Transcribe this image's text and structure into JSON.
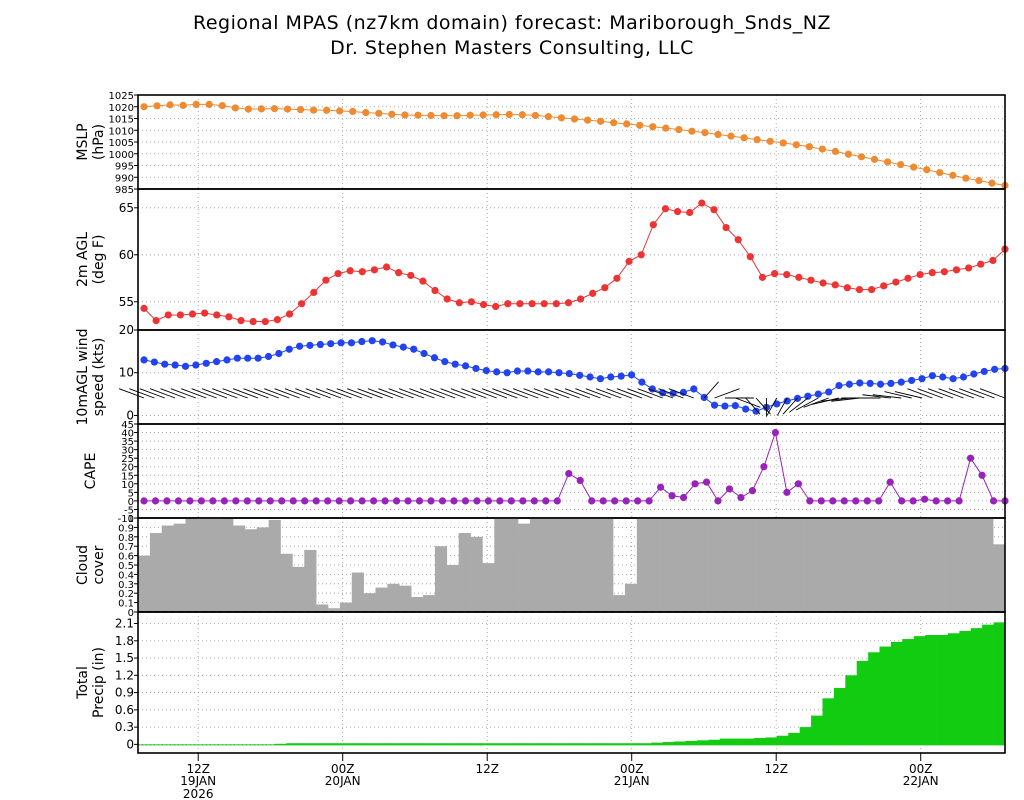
{
  "header": {
    "title": "Regional MPAS (nz7km domain) forecast: Mariborough_Snds_NZ",
    "subtitle": "Dr. Stephen Masters Consulting, LLC"
  },
  "chart_data": [
    {
      "type": "line",
      "ylabel": [
        "MSLP",
        "(hPa)"
      ],
      "ylim": [
        985,
        1025
      ],
      "yticks": [
        985,
        990,
        995,
        1000,
        1005,
        1010,
        1015,
        1020,
        1025
      ],
      "color": "#f08a30",
      "grid": true,
      "values": [
        1020,
        1020.4,
        1020.8,
        1020.6,
        1021,
        1021,
        1020.5,
        1019.5,
        1019,
        1019.1,
        1019.2,
        1019,
        1018.8,
        1018.6,
        1018.5,
        1018.2,
        1018,
        1017.5,
        1017.2,
        1016.8,
        1016.5,
        1016.4,
        1016.3,
        1016.2,
        1016.2,
        1016.4,
        1016.5,
        1016.6,
        1016.7,
        1016.6,
        1016.3,
        1015.8,
        1015.3,
        1014.8,
        1014.3,
        1013.8,
        1013.2,
        1012.7,
        1012.1,
        1011.5,
        1010.9,
        1010.3,
        1009.6,
        1009,
        1008.2,
        1007.5,
        1006.8,
        1006,
        1005.3,
        1004.6,
        1003.8,
        1003,
        1002,
        1001,
        999.8,
        998.7,
        997.6,
        996.5,
        995.4,
        994.3,
        993.2,
        992,
        990.8,
        989.6,
        988.6,
        987.5,
        986.5
      ]
    },
    {
      "type": "line",
      "ylabel": [
        "2m AGL",
        "(deg F)"
      ],
      "ylim": [
        52,
        67
      ],
      "yticks": [
        55,
        60,
        65
      ],
      "color": "#ee3333",
      "grid": true,
      "values": [
        54.3,
        53.0,
        53.6,
        53.6,
        53.7,
        53.8,
        53.6,
        53.4,
        53.0,
        52.9,
        52.9,
        53.1,
        53.7,
        54.8,
        56.0,
        57.3,
        58.0,
        58.3,
        58.2,
        58.4,
        58.7,
        58.1,
        57.8,
        57.2,
        56.2,
        55.3,
        54.9,
        55.0,
        54.7,
        54.5,
        54.8,
        54.8,
        54.8,
        54.8,
        54.8,
        54.9,
        55.3,
        55.9,
        56.5,
        57.5,
        59.3,
        60.0,
        63.2,
        64.9,
        64.6,
        64.5,
        65.5,
        64.8,
        62.9,
        61.6,
        59.8,
        57.6,
        58.0,
        57.9,
        57.6,
        57.3,
        57.0,
        56.8,
        56.5,
        56.3,
        56.3,
        56.7,
        57.1,
        57.5,
        57.9,
        58.1,
        58.2,
        58.4,
        58.6,
        59.0,
        59.4,
        60.6
      ]
    },
    {
      "type": "line",
      "ylabel": [
        "10mAGL wind",
        "speed (kts)"
      ],
      "ylim": [
        -2,
        20
      ],
      "yticks": [
        0,
        10,
        20
      ],
      "color": "#2244ee",
      "grid": true,
      "wind_barbs": true,
      "values": [
        13,
        12.5,
        12,
        11.8,
        11.5,
        11.8,
        12.2,
        12.6,
        13,
        13.4,
        13.4,
        13.4,
        13.8,
        14.5,
        15.5,
        16.2,
        16.4,
        16.6,
        16.8,
        17,
        17,
        17.3,
        17.5,
        17.2,
        16.5,
        16,
        15.5,
        14.5,
        13.5,
        12.6,
        12,
        11.6,
        11,
        10.5,
        10.2,
        10,
        10.4,
        10.4,
        10.2,
        10.2,
        10,
        9.8,
        9.4,
        9,
        8.6,
        9,
        9.2,
        9.5,
        7.8,
        6.2,
        5.3,
        5.2,
        5.4,
        6.2,
        4.2,
        2.4,
        2.2,
        2.3,
        1.5,
        1,
        1.9,
        2.7,
        3.4,
        4,
        4.5,
        5,
        5.5,
        7,
        7.3,
        7.6,
        7.5,
        7.3,
        7.5,
        7.8,
        8.2,
        8.6,
        9.3,
        9,
        8.6,
        9,
        9.7,
        10.3,
        10.8,
        11
      ]
    },
    {
      "type": "line",
      "ylabel": [
        "CAPE"
      ],
      "ylim": [
        -10,
        45
      ],
      "yticks": [
        -10,
        -5,
        0,
        5,
        10,
        15,
        20,
        25,
        30,
        35,
        40,
        45
      ],
      "color": "#9922bb",
      "grid": true,
      "values": [
        0,
        0,
        0,
        0,
        0,
        0,
        0,
        0,
        0,
        0,
        0,
        0,
        0,
        0,
        0,
        0,
        0,
        0,
        0,
        0,
        0,
        0,
        0,
        0,
        0,
        0,
        0,
        0,
        0,
        0,
        0,
        0,
        0,
        0,
        0,
        0,
        0,
        16,
        12,
        0,
        0,
        0,
        0,
        0,
        0,
        8,
        3,
        2,
        10,
        11,
        0,
        7,
        2,
        6,
        20,
        40,
        5,
        10,
        0,
        0,
        0,
        0,
        0,
        0,
        0,
        11,
        0,
        0,
        1,
        0,
        0,
        0,
        25,
        15,
        0,
        0
      ]
    },
    {
      "type": "bar",
      "ylabel": [
        "Cloud",
        "cover"
      ],
      "ylim": [
        0,
        1
      ],
      "yticks": [
        0,
        0.1,
        0.2,
        0.3,
        0.4,
        0.5,
        0.6,
        0.7,
        0.8,
        0.9,
        1
      ],
      "ytick_labels": [
        "0",
        "0.1",
        "0.2",
        "0.3",
        "0.4",
        "0.5",
        "0.6",
        "0.7",
        "0.8",
        "0.9",
        "1"
      ],
      "color": "#aaaaaa",
      "grid": true,
      "values": [
        0.6,
        0.84,
        0.92,
        0.94,
        0.99,
        1,
        1,
        0.99,
        0.92,
        0.88,
        0.9,
        0.98,
        0.62,
        0.48,
        0.66,
        0.08,
        0.04,
        0.1,
        0.42,
        0.2,
        0.26,
        0.3,
        0.28,
        0.16,
        0.18,
        0.7,
        0.5,
        0.84,
        0.8,
        0.52,
        1,
        1,
        0.94,
        1,
        1,
        1,
        1,
        1,
        1,
        1,
        0.18,
        0.3,
        1,
        1,
        1,
        1,
        1,
        1,
        1,
        1,
        1,
        1,
        1,
        1,
        1,
        1,
        1,
        1,
        1,
        1,
        1,
        1,
        1,
        1,
        1,
        1,
        1,
        1,
        1,
        1,
        1,
        1,
        0.72
      ]
    },
    {
      "type": "area",
      "ylabel": [
        "Total",
        "Precip (in)"
      ],
      "ylim": [
        -0.15,
        2.3
      ],
      "yticks": [
        0,
        0.3,
        0.6,
        0.9,
        1.2,
        1.5,
        1.8,
        2.1
      ],
      "ytick_labels": [
        "0",
        "0.3",
        "0.6",
        "0.9",
        "1.2",
        "1.5",
        "1.8",
        "2.1"
      ],
      "color": "#11cc11",
      "grid": true,
      "values": [
        0,
        0,
        0,
        0,
        0,
        0,
        0,
        0,
        0,
        0,
        0,
        0,
        0.01,
        0.02,
        0.02,
        0.02,
        0.02,
        0.02,
        0.02,
        0.02,
        0.02,
        0.02,
        0.02,
        0.02,
        0.02,
        0.02,
        0.02,
        0.02,
        0.02,
        0.02,
        0.02,
        0.02,
        0.02,
        0.02,
        0.02,
        0.02,
        0.02,
        0.02,
        0.02,
        0.02,
        0.02,
        0.02,
        0.02,
        0.02,
        0.02,
        0.03,
        0.04,
        0.05,
        0.06,
        0.07,
        0.08,
        0.1,
        0.1,
        0.1,
        0.11,
        0.12,
        0.15,
        0.2,
        0.3,
        0.5,
        0.8,
        0.98,
        1.2,
        1.45,
        1.6,
        1.7,
        1.78,
        1.83,
        1.88,
        1.9,
        1.9,
        1.93,
        1.97,
        2.02,
        2.08,
        2.12
      ]
    }
  ],
  "x_axis": {
    "x_start_hour": 0,
    "x_end_hour": 72,
    "ticks": [
      {
        "hour": 0,
        "label": "12Z"
      },
      {
        "hour": 12,
        "label": "00Z"
      },
      {
        "hour": 24,
        "label": "12Z"
      },
      {
        "hour": 36,
        "label": "00Z"
      },
      {
        "hour": 48,
        "label": "12Z"
      },
      {
        "hour": 60,
        "label": "00Z"
      }
    ],
    "dates": [
      {
        "hour": 0,
        "label": "19JAN"
      },
      {
        "hour": 12,
        "label": "20JAN"
      },
      {
        "hour": 36,
        "label": "21JAN"
      },
      {
        "hour": 60,
        "label": "22JAN"
      }
    ],
    "year": {
      "hour": 0,
      "label": "2026"
    }
  },
  "wind": {
    "directions": [
      300,
      300,
      300,
      300,
      300,
      300,
      300,
      300,
      300,
      300,
      300,
      300,
      300,
      300,
      300,
      300,
      300,
      300,
      300,
      300,
      300,
      300,
      300,
      300,
      300,
      300,
      300,
      300,
      300,
      300,
      300,
      300,
      300,
      300,
      300,
      300,
      300,
      300,
      300,
      300,
      300,
      300,
      300,
      300,
      300,
      300,
      300,
      300,
      300,
      300,
      300,
      300,
      300,
      300,
      30,
      60,
      90,
      120,
      150,
      150,
      180,
      200,
      200,
      210,
      220,
      230,
      240,
      250,
      260,
      260,
      270,
      270,
      280,
      280,
      290,
      290,
      300,
      300,
      300,
      300,
      300,
      300,
      300,
      300
    ]
  }
}
